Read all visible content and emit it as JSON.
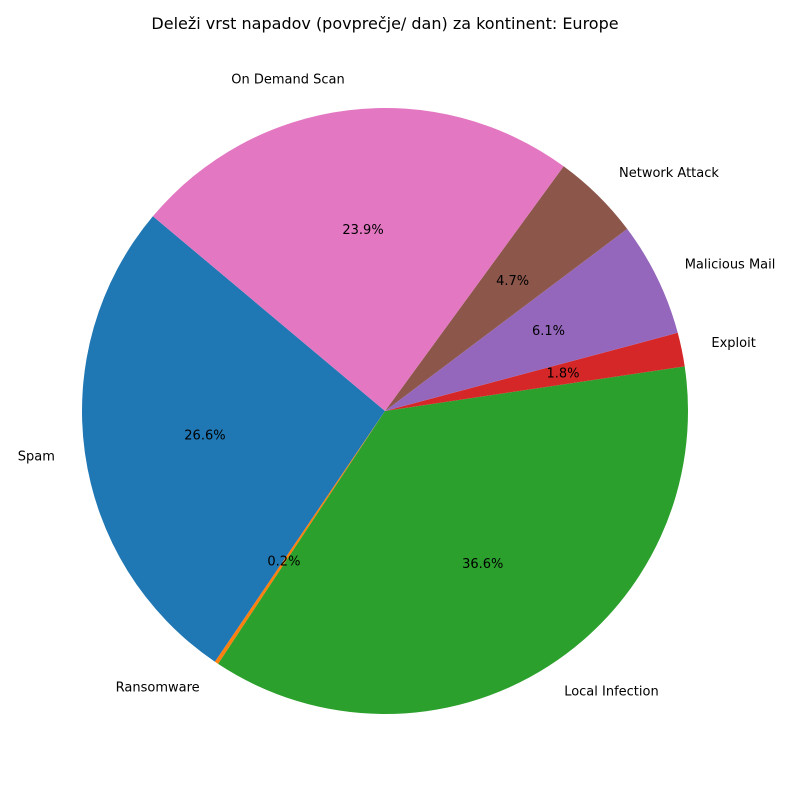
{
  "chart_data": {
    "type": "pie",
    "title": "Deleži vrst napadov (povprečje/ dan) za kontinent: Europe",
    "start_angle_deg": 140,
    "direction": "counterclockwise",
    "slices": [
      {
        "label": "Spam",
        "value": 26.6,
        "pct_label": "26.6%",
        "color": "#1f77b4"
      },
      {
        "label": "Ransomware",
        "value": 0.2,
        "pct_label": "0.2%",
        "color": "#ff7f0e"
      },
      {
        "label": "Local Infection",
        "value": 36.6,
        "pct_label": "36.6%",
        "color": "#2ca02c"
      },
      {
        "label": "Exploit",
        "value": 1.8,
        "pct_label": "1.8%",
        "color": "#d62728"
      },
      {
        "label": "Malicious Mail",
        "value": 6.1,
        "pct_label": "6.1%",
        "color": "#9467bd"
      },
      {
        "label": "Network Attack",
        "value": 4.7,
        "pct_label": "4.7%",
        "color": "#8c564b"
      },
      {
        "label": "On Demand Scan",
        "value": 23.9,
        "pct_label": "23.9%",
        "color": "#e377c2"
      }
    ],
    "legend": "none"
  }
}
